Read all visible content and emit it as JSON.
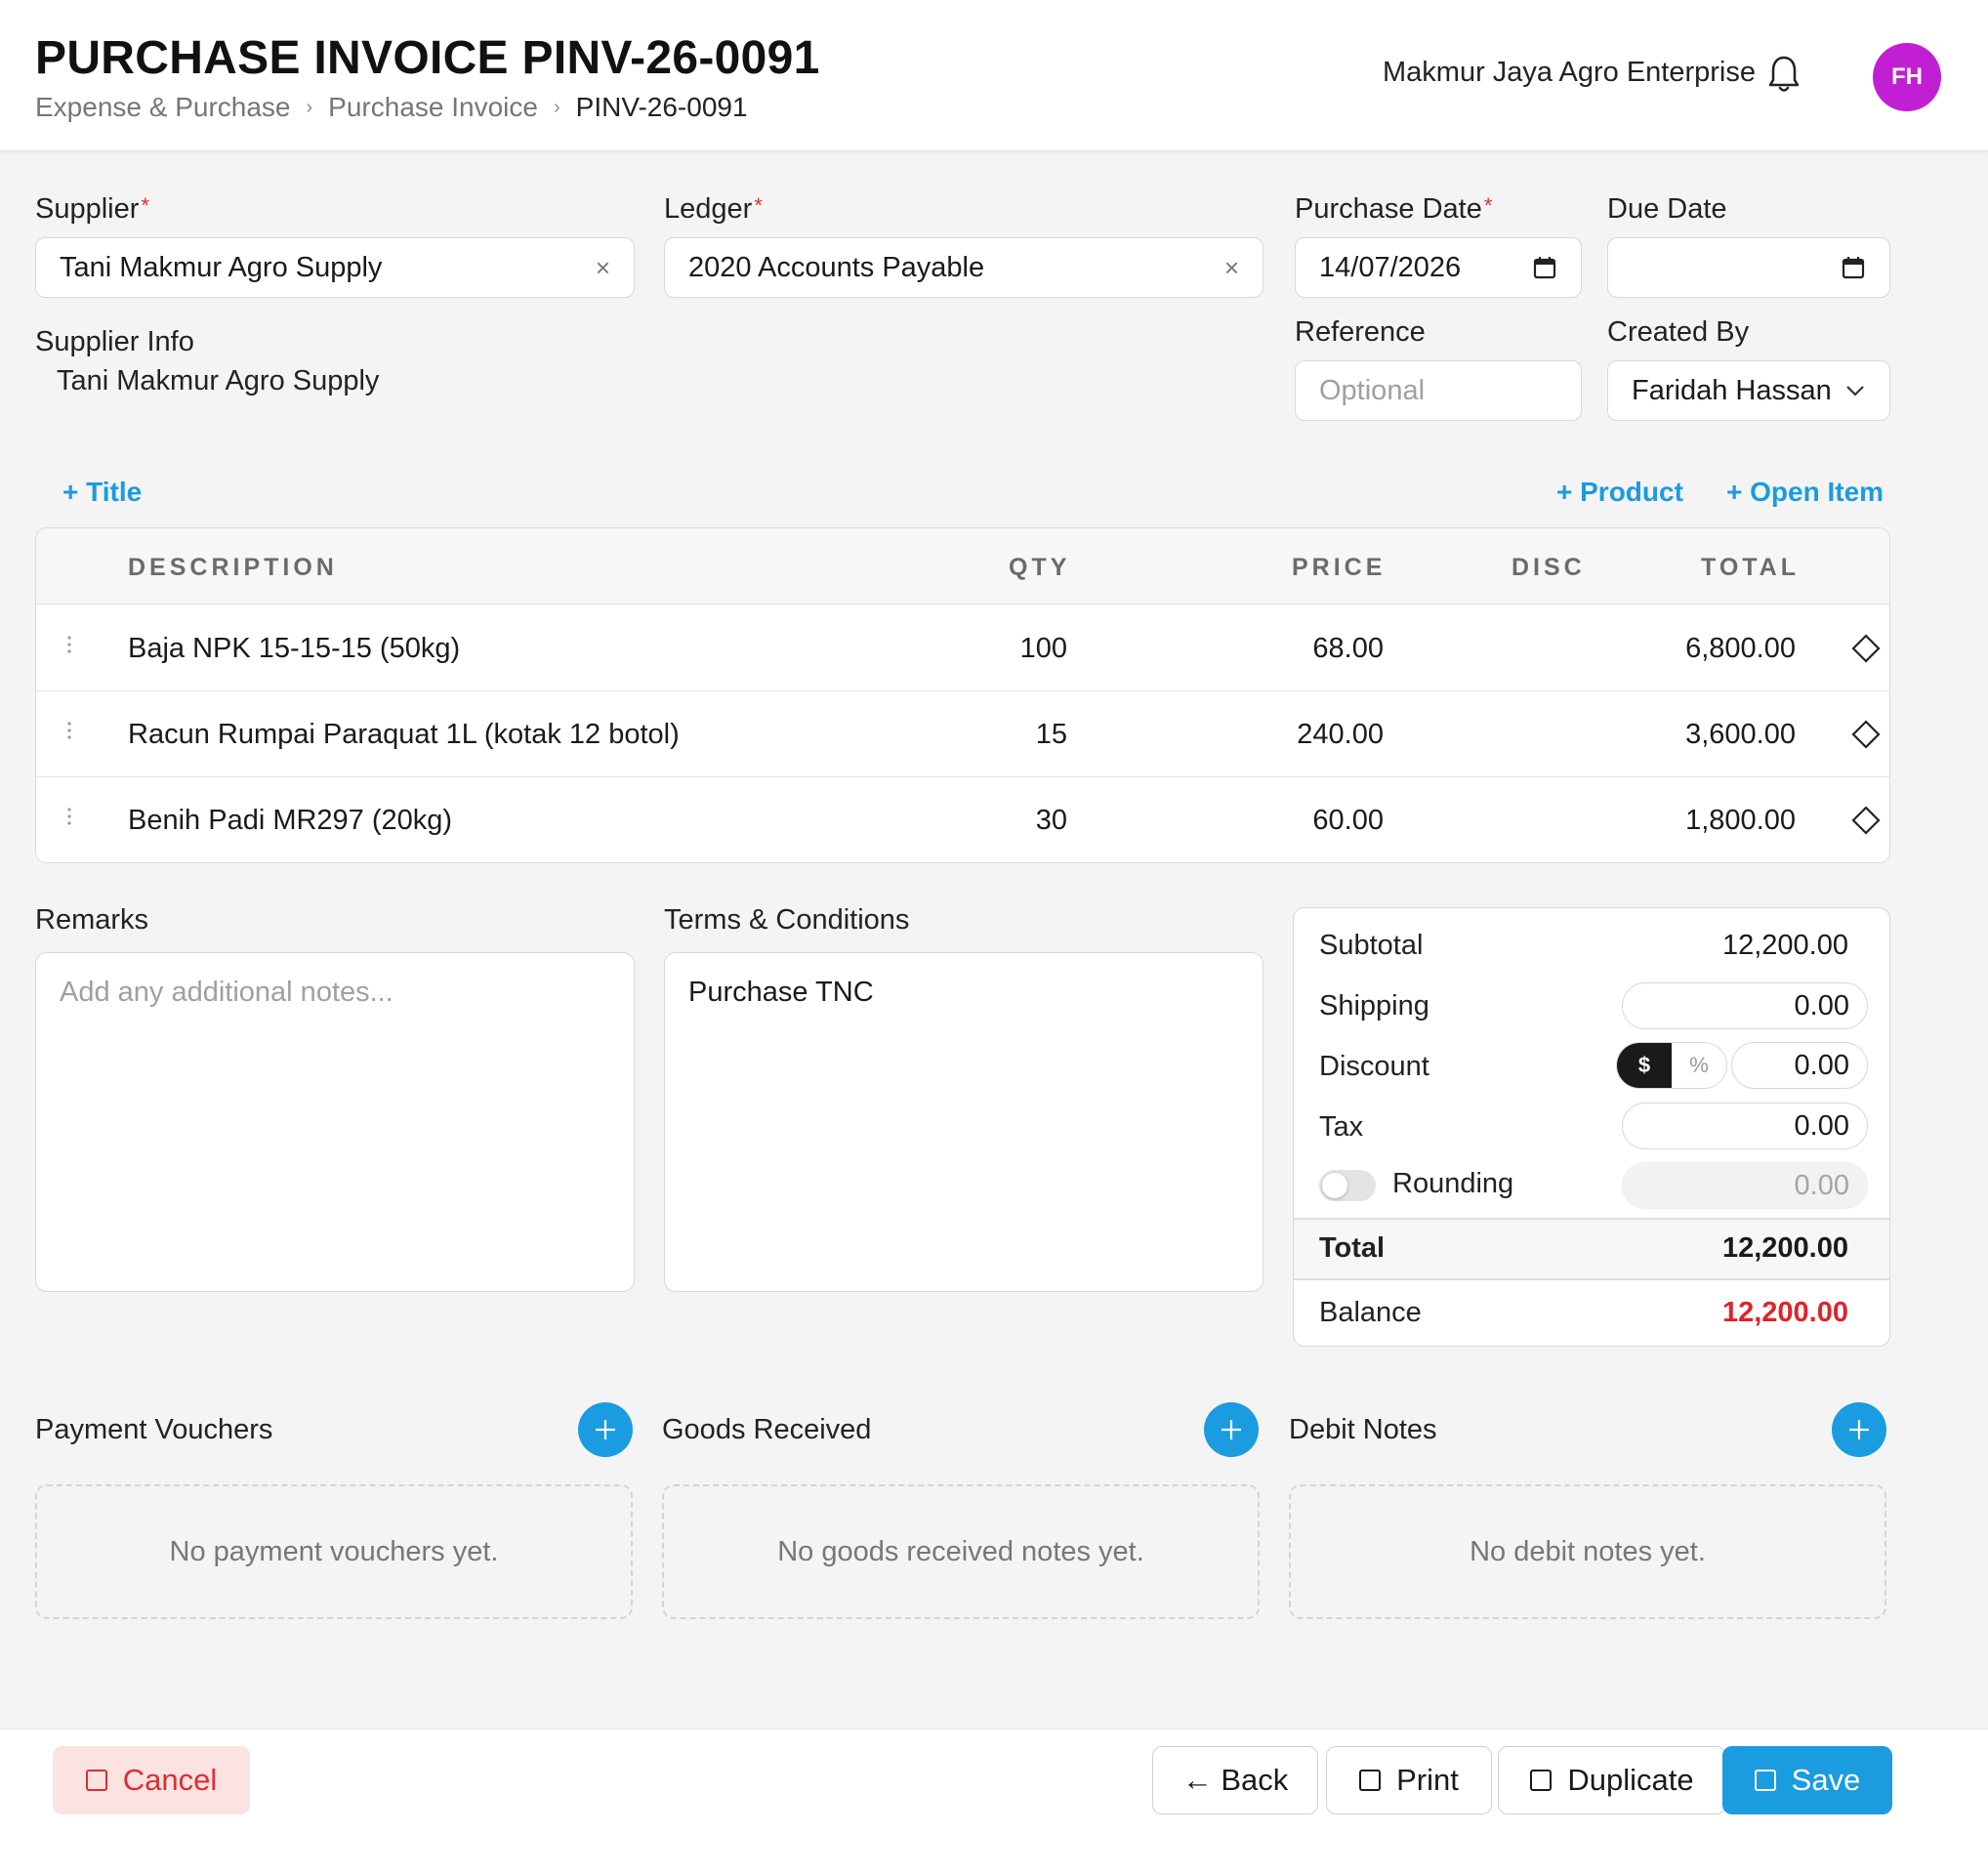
{
  "header": {
    "title": "PURCHASE INVOICE PINV-26-0091",
    "breadcrumb": [
      "Expense & Purchase",
      "Purchase Invoice",
      "PINV-26-0091"
    ],
    "company": "Makmur Jaya Agro Enterprise",
    "avatar_initials": "FH",
    "avatar_color": "#c21fd4"
  },
  "form": {
    "supplier": {
      "label": "Supplier",
      "value": "Tani Makmur Agro Supply",
      "required": true
    },
    "ledger": {
      "label": "Ledger",
      "value": "2020 Accounts Payable",
      "required": true
    },
    "purchase_date": {
      "label": "Purchase Date",
      "value": "14/07/2026",
      "required": true
    },
    "due_date": {
      "label": "Due Date",
      "value": ""
    },
    "supplier_info": {
      "label": "Supplier Info",
      "value": "Tani Makmur Agro Supply"
    },
    "reference": {
      "label": "Reference",
      "placeholder": "Optional",
      "value": ""
    },
    "created_by": {
      "label": "Created By",
      "value": "Faridah Hassan"
    }
  },
  "actions": {
    "add_title": "+ Title",
    "add_product": "+ Product",
    "add_open_item": "+ Open Item"
  },
  "items": {
    "columns": [
      "DESCRIPTION",
      "QTY",
      "PRICE",
      "DISC",
      "TOTAL"
    ],
    "rows": [
      {
        "description": "Baja NPK 15-15-15 (50kg)",
        "qty": "100",
        "price": "68.00",
        "disc": "",
        "total": "6,800.00"
      },
      {
        "description": "Racun Rumpai Paraquat 1L (kotak 12 botol)",
        "qty": "15",
        "price": "240.00",
        "disc": "",
        "total": "3,600.00"
      },
      {
        "description": "Benih Padi MR297 (20kg)",
        "qty": "30",
        "price": "60.00",
        "disc": "",
        "total": "1,800.00"
      }
    ]
  },
  "remarks": {
    "label": "Remarks",
    "placeholder": "Add any additional notes..."
  },
  "terms": {
    "label": "Terms & Conditions",
    "value": "Purchase TNC"
  },
  "summary": {
    "subtotal_label": "Subtotal",
    "subtotal": "12,200.00",
    "shipping_label": "Shipping",
    "shipping": "0.00",
    "discount_label": "Discount",
    "discount": "0.00",
    "discount_mode_fixed": "$",
    "discount_mode_percent": "%",
    "tax_label": "Tax",
    "tax": "0.00",
    "rounding_label": "Rounding",
    "rounding": "0.00",
    "rounding_enabled": false,
    "total_label": "Total",
    "total": "12,200.00",
    "balance_label": "Balance",
    "balance": "12,200.00",
    "balance_color": "#e0222b"
  },
  "related": {
    "payment_vouchers": {
      "title": "Payment Vouchers",
      "empty": "No payment vouchers yet."
    },
    "goods_received": {
      "title": "Goods Received",
      "empty": "No goods received notes yet."
    },
    "debit_notes": {
      "title": "Debit Notes",
      "empty": "No debit notes yet."
    }
  },
  "footer": {
    "cancel": "Cancel",
    "back": "← Back",
    "print": "Print",
    "duplicate": "Duplicate",
    "save": "Save"
  },
  "colors": {
    "accent": "#1b9be0",
    "danger": "#d93030",
    "danger_bg": "#fde2e2"
  }
}
